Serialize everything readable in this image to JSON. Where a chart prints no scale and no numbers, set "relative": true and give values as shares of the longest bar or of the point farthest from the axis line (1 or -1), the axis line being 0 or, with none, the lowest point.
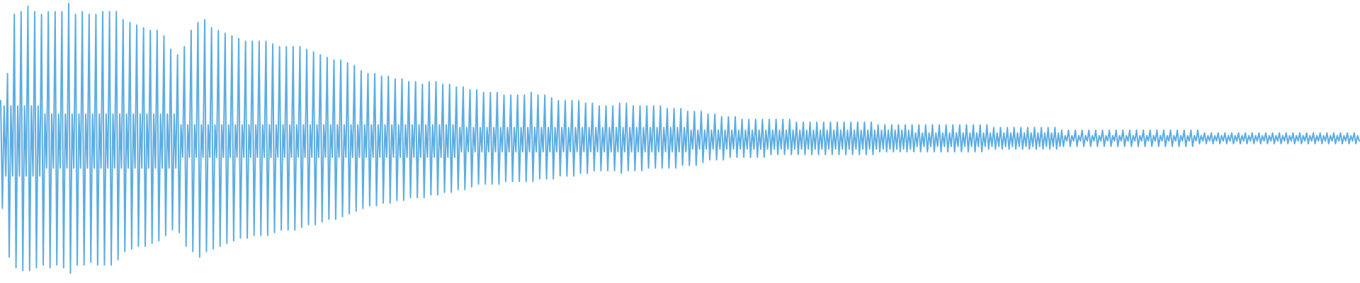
{
  "chart_data": {
    "type": "line",
    "relative": true,
    "color": "#5dade2",
    "categories": [
      null,
      null,
      null,
      null,
      null,
      null,
      null,
      null,
      null,
      null,
      null,
      null,
      null,
      null,
      null,
      null,
      null,
      null,
      null,
      null,
      null,
      null,
      null,
      null,
      null,
      null,
      null,
      null,
      null,
      null,
      null,
      null,
      null,
      null,
      null,
      null,
      null,
      null,
      null,
      null,
      null,
      null,
      null,
      null,
      null,
      null,
      null,
      null,
      null,
      null,
      null,
      null,
      null,
      null,
      null,
      null,
      null,
      null,
      null,
      null,
      null,
      null,
      null,
      null,
      null,
      null,
      null,
      null,
      null,
      null,
      null,
      null,
      null,
      null,
      null,
      null,
      null,
      null,
      null,
      null,
      null,
      null,
      null,
      null,
      null,
      null,
      null,
      null,
      null,
      null,
      null,
      null,
      null,
      null,
      null,
      null,
      null,
      null,
      null,
      null,
      null,
      null,
      null,
      null,
      null,
      null,
      null,
      null,
      null,
      null,
      null,
      null,
      null,
      null,
      null,
      null,
      null,
      null,
      null,
      null,
      null,
      null,
      null,
      null,
      null,
      null,
      null,
      null,
      null,
      null,
      null,
      null,
      null,
      null,
      null,
      null,
      null,
      null,
      null,
      null,
      null,
      null,
      null,
      null,
      null,
      null,
      null,
      null,
      null,
      null,
      null,
      null,
      null,
      null,
      null,
      null,
      null,
      null,
      null,
      null,
      null,
      null,
      null,
      null,
      null,
      null,
      null,
      null,
      null,
      null,
      null,
      null,
      null,
      null,
      null,
      null,
      null,
      null,
      null,
      null,
      null,
      null,
      null,
      null,
      null,
      null,
      null,
      null,
      null,
      null,
      null,
      null,
      null,
      null,
      null,
      null,
      null,
      null,
      null,
      null,
      null,
      null,
      null,
      null,
      null,
      null,
      null,
      null,
      null,
      null,
      null,
      null,
      null,
      null,
      null,
      null,
      null,
      null,
      null,
      null,
      null,
      null,
      null,
      null,
      null,
      null,
      null,
      null,
      null,
      null,
      null,
      null,
      null,
      null,
      null,
      null,
      null,
      null,
      null,
      null,
      null,
      null,
      null,
      null,
      null,
      null,
      null,
      null,
      null,
      null,
      null,
      null,
      null,
      null,
      null,
      null,
      null,
      null,
      null,
      null,
      null,
      null,
      null,
      null,
      null,
      null,
      null,
      null,
      null,
      null,
      null,
      null,
      null,
      null,
      null,
      null,
      null,
      null,
      null,
      null,
      null,
      null,
      null,
      null,
      null,
      null,
      null,
      null,
      null,
      null,
      null,
      null,
      null,
      null,
      null,
      null,
      null,
      null,
      null,
      null,
      null,
      null,
      null,
      null,
      null,
      null,
      null,
      null,
      null,
      null,
      null,
      null,
      null,
      null,
      null,
      null,
      null,
      null,
      null,
      null,
      null,
      null,
      null,
      null,
      null,
      null,
      null,
      null,
      null,
      null,
      null,
      null,
      null,
      null,
      null,
      null,
      null,
      null,
      null,
      null,
      null,
      null,
      null,
      null,
      null,
      null,
      null,
      null,
      null,
      null,
      null,
      null,
      null,
      null,
      null,
      null,
      null,
      null,
      null,
      null,
      null,
      null,
      null,
      null,
      null,
      null,
      null,
      null,
      null,
      null,
      null,
      null,
      null,
      null,
      null,
      null,
      null,
      null,
      null,
      null,
      null,
      null,
      null,
      null,
      null,
      null,
      null,
      null,
      null,
      null,
      null,
      null,
      null,
      null,
      null,
      null,
      null,
      null,
      null,
      null,
      null,
      null,
      null,
      null,
      null,
      null,
      null,
      null,
      null,
      null,
      null,
      null,
      null,
      null,
      null,
      null,
      null,
      null,
      null,
      null,
      null,
      null,
      null,
      null,
      null,
      null,
      null,
      null,
      null,
      null,
      null,
      null,
      null,
      null,
      null,
      null,
      null,
      null,
      null,
      null,
      null,
      null,
      null,
      null,
      null,
      null,
      null,
      null,
      null,
      null,
      null,
      null,
      null,
      null,
      null,
      null,
      null,
      null,
      null,
      null,
      null,
      null,
      null,
      null,
      null,
      null,
      null,
      null,
      null,
      null,
      null,
      null,
      null,
      null,
      null,
      null,
      null,
      null,
      null,
      null,
      null,
      null,
      null,
      null,
      null,
      null,
      null,
      null,
      null,
      null,
      null,
      null,
      null,
      null,
      null,
      null,
      null,
      null,
      null,
      null,
      null,
      null,
      null,
      null,
      null,
      null,
      null,
      null,
      null,
      null,
      null,
      null,
      null,
      null,
      null,
      null,
      null,
      null,
      null,
      null,
      null,
      null,
      null,
      null,
      null,
      null,
      null,
      null,
      null,
      null,
      null,
      null,
      null,
      null,
      null,
      null,
      null,
      null,
      null,
      null,
      null,
      null,
      null,
      null,
      null,
      null,
      null,
      null,
      null,
      null,
      null,
      null,
      null,
      null,
      null,
      null,
      null,
      null,
      null,
      null,
      null,
      null,
      null,
      null,
      null,
      null,
      null,
      null,
      null,
      null,
      null,
      null,
      null,
      null,
      null,
      null,
      null,
      null,
      null,
      null,
      null,
      null,
      null,
      null,
      null,
      null,
      null,
      null,
      null,
      null,
      null,
      null,
      null,
      null,
      null,
      null,
      null,
      null,
      null,
      null,
      null,
      null,
      null,
      null,
      null,
      null,
      null,
      null,
      null,
      null,
      null,
      null,
      null,
      null,
      null,
      null,
      null,
      null,
      null,
      null,
      null,
      null,
      null,
      null,
      null,
      null,
      null,
      null,
      null,
      null,
      null,
      null,
      null,
      null,
      null,
      null,
      null,
      null,
      null,
      null,
      null,
      null,
      null,
      null,
      null,
      null,
      null,
      null,
      null,
      null,
      null,
      null,
      null,
      null,
      null,
      null,
      null,
      null,
      null,
      null,
      null,
      null,
      null,
      null,
      null,
      null,
      null,
      null,
      null,
      null,
      null,
      null,
      null,
      null,
      null,
      null,
      null,
      null,
      null,
      null,
      null,
      null,
      null,
      null,
      null,
      null,
      null,
      null,
      null,
      null,
      null,
      null,
      null,
      null,
      null,
      null,
      null,
      null,
      null,
      null,
      null,
      null,
      null,
      null,
      null,
      null,
      null,
      null,
      null,
      null,
      null,
      null,
      null,
      null,
      null,
      null,
      null,
      null,
      null,
      null,
      null,
      null,
      null,
      null,
      null,
      null,
      null,
      null,
      null,
      null,
      null,
      null,
      null,
      null,
      null,
      null,
      null,
      null,
      null,
      null,
      null,
      null,
      null,
      null,
      null,
      null,
      null,
      null,
      null,
      null,
      null,
      null,
      null,
      null,
      null,
      null,
      null,
      null,
      null,
      null,
      null,
      null,
      null,
      null,
      null,
      null,
      null,
      null,
      null,
      null,
      null,
      null,
      null,
      null,
      null,
      null,
      null,
      null,
      null,
      null,
      null,
      null,
      null,
      null,
      null,
      null,
      null,
      null,
      null,
      null,
      null,
      null,
      null,
      null,
      null,
      null,
      null,
      null,
      null,
      null
    ],
    "values": [
      0.64,
      0.24,
      0.62,
      0.36,
      0.74,
      0.06,
      0.62,
      0.36,
      0.96,
      0.02,
      0.62,
      0.36,
      0.97,
      0.01,
      0.62,
      0.36,
      0.99,
      0.01,
      0.62,
      0.36,
      0.97,
      0.02,
      0.62,
      0.36,
      0.96,
      0.03,
      0.59,
      0.39,
      0.97,
      0.02,
      0.59,
      0.39,
      0.97,
      0.03,
      0.59,
      0.39,
      0.97,
      0.02,
      0.59,
      0.39,
      1.0,
      0.0,
      0.59,
      0.39,
      0.96,
      0.03,
      0.59,
      0.39,
      0.97,
      0.03,
      0.59,
      0.39,
      0.96,
      0.04,
      0.59,
      0.39,
      0.96,
      0.03,
      0.59,
      0.39,
      0.97,
      0.03,
      0.59,
      0.39,
      0.97,
      0.03,
      0.59,
      0.39,
      0.97,
      0.05,
      0.59,
      0.39,
      0.94,
      0.08,
      0.59,
      0.39,
      0.93,
      0.09,
      0.59,
      0.39,
      0.92,
      0.1,
      0.59,
      0.39,
      0.91,
      0.1,
      0.59,
      0.39,
      0.9,
      0.11,
      0.59,
      0.39,
      0.9,
      0.12,
      0.59,
      0.39,
      0.88,
      0.14,
      0.59,
      0.39,
      0.83,
      0.16,
      0.59,
      0.39,
      0.81,
      0.15,
      0.55,
      0.43,
      0.84,
      0.1,
      0.55,
      0.43,
      0.9,
      0.08,
      0.55,
      0.43,
      0.93,
      0.06,
      0.55,
      0.43,
      0.94,
      0.08,
      0.55,
      0.43,
      0.91,
      0.09,
      0.55,
      0.43,
      0.9,
      0.1,
      0.55,
      0.43,
      0.89,
      0.11,
      0.55,
      0.43,
      0.88,
      0.12,
      0.55,
      0.43,
      0.87,
      0.13,
      0.55,
      0.43,
      0.86,
      0.13,
      0.55,
      0.43,
      0.86,
      0.14,
      0.55,
      0.43,
      0.86,
      0.14,
      0.55,
      0.43,
      0.86,
      0.14,
      0.55,
      0.43,
      0.85,
      0.15,
      0.55,
      0.43,
      0.84,
      0.16,
      0.55,
      0.43,
      0.84,
      0.16,
      0.55,
      0.43,
      0.84,
      0.16,
      0.55,
      0.43,
      0.84,
      0.17,
      0.55,
      0.43,
      0.83,
      0.18,
      0.55,
      0.43,
      0.82,
      0.18,
      0.55,
      0.43,
      0.81,
      0.19,
      0.55,
      0.43,
      0.8,
      0.2,
      0.55,
      0.43,
      0.79,
      0.2,
      0.55,
      0.43,
      0.79,
      0.21,
      0.55,
      0.43,
      0.78,
      0.22,
      0.55,
      0.43,
      0.77,
      0.23,
      0.55,
      0.43,
      0.75,
      0.24,
      0.55,
      0.43,
      0.74,
      0.25,
      0.55,
      0.43,
      0.74,
      0.25,
      0.55,
      0.43,
      0.73,
      0.26,
      0.55,
      0.43,
      0.73,
      0.26,
      0.55,
      0.43,
      0.72,
      0.27,
      0.55,
      0.43,
      0.72,
      0.27,
      0.55,
      0.43,
      0.71,
      0.28,
      0.55,
      0.43,
      0.71,
      0.28,
      0.55,
      0.43,
      0.7,
      0.28,
      0.55,
      0.43,
      0.71,
      0.29,
      0.55,
      0.43,
      0.71,
      0.29,
      0.55,
      0.43,
      0.7,
      0.3,
      0.55,
      0.43,
      0.7,
      0.3,
      0.55,
      0.43,
      0.69,
      0.31,
      0.54,
      0.45,
      0.69,
      0.31,
      0.54,
      0.45,
      0.68,
      0.32,
      0.54,
      0.45,
      0.68,
      0.33,
      0.54,
      0.45,
      0.67,
      0.33,
      0.54,
      0.45,
      0.67,
      0.33,
      0.54,
      0.45,
      0.67,
      0.33,
      0.54,
      0.45,
      0.66,
      0.34,
      0.54,
      0.45,
      0.66,
      0.34,
      0.54,
      0.45,
      0.66,
      0.34,
      0.54,
      0.45,
      0.66,
      0.34,
      0.54,
      0.45,
      0.67,
      0.34,
      0.54,
      0.45,
      0.66,
      0.35,
      0.54,
      0.45,
      0.66,
      0.35,
      0.54,
      0.45,
      0.65,
      0.35,
      0.54,
      0.45,
      0.64,
      0.36,
      0.54,
      0.45,
      0.64,
      0.36,
      0.54,
      0.45,
      0.64,
      0.36,
      0.54,
      0.45,
      0.64,
      0.37,
      0.54,
      0.45,
      0.63,
      0.37,
      0.54,
      0.45,
      0.63,
      0.38,
      0.54,
      0.45,
      0.62,
      0.38,
      0.54,
      0.45,
      0.62,
      0.38,
      0.54,
      0.45,
      0.62,
      0.38,
      0.54,
      0.45,
      0.63,
      0.37,
      0.54,
      0.45,
      0.63,
      0.38,
      0.54,
      0.45,
      0.62,
      0.38,
      0.54,
      0.45,
      0.62,
      0.38,
      0.54,
      0.45,
      0.62,
      0.39,
      0.54,
      0.45,
      0.62,
      0.39,
      0.54,
      0.45,
      0.62,
      0.39,
      0.54,
      0.45,
      0.61,
      0.39,
      0.54,
      0.45,
      0.61,
      0.39,
      0.54,
      0.45,
      0.61,
      0.4,
      0.54,
      0.45,
      0.6,
      0.4,
      0.53,
      0.46,
      0.6,
      0.4,
      0.53,
      0.46,
      0.6,
      0.41,
      0.53,
      0.46,
      0.59,
      0.42,
      0.53,
      0.46,
      0.59,
      0.42,
      0.53,
      0.46,
      0.58,
      0.42,
      0.53,
      0.46,
      0.58,
      0.43,
      0.53,
      0.46,
      0.58,
      0.43,
      0.53,
      0.46,
      0.57,
      0.43,
      0.53,
      0.46,
      0.57,
      0.43,
      0.53,
      0.46,
      0.57,
      0.43,
      0.53,
      0.46,
      0.57,
      0.43,
      0.53,
      0.46,
      0.57,
      0.44,
      0.53,
      0.46,
      0.57,
      0.44,
      0.53,
      0.46,
      0.57,
      0.44,
      0.53,
      0.46,
      0.57,
      0.44,
      0.53,
      0.46,
      0.56,
      0.44,
      0.53,
      0.46,
      0.56,
      0.44,
      0.53,
      0.46,
      0.56,
      0.44,
      0.53,
      0.46,
      0.56,
      0.44,
      0.53,
      0.46,
      0.56,
      0.44,
      0.53,
      0.46,
      0.56,
      0.44,
      0.53,
      0.46,
      0.56,
      0.44,
      0.53,
      0.46,
      0.56,
      0.44,
      0.53,
      0.46,
      0.56,
      0.44,
      0.53,
      0.46,
      0.56,
      0.44,
      0.53,
      0.46,
      0.56,
      0.44,
      0.53,
      0.46,
      0.56,
      0.44,
      0.53,
      0.46,
      0.55,
      0.45,
      0.53,
      0.46,
      0.55,
      0.45,
      0.53,
      0.46,
      0.55,
      0.45,
      0.53,
      0.46,
      0.55,
      0.45,
      0.53,
      0.46,
      0.55,
      0.45,
      0.53,
      0.46,
      0.55,
      0.45,
      0.52,
      0.47,
      0.55,
      0.45,
      0.52,
      0.47,
      0.55,
      0.45,
      0.52,
      0.47,
      0.55,
      0.45,
      0.52,
      0.47,
      0.55,
      0.45,
      0.52,
      0.47,
      0.55,
      0.45,
      0.52,
      0.47,
      0.55,
      0.45,
      0.52,
      0.47,
      0.55,
      0.45,
      0.52,
      0.47,
      0.55,
      0.45,
      0.52,
      0.47,
      0.55,
      0.45,
      0.52,
      0.47,
      0.55,
      0.45,
      0.52,
      0.47,
      0.55,
      0.46,
      0.52,
      0.47,
      0.54,
      0.46,
      0.52,
      0.47,
      0.54,
      0.46,
      0.52,
      0.47,
      0.54,
      0.46,
      0.52,
      0.47,
      0.54,
      0.46,
      0.52,
      0.47,
      0.54,
      0.46,
      0.52,
      0.47,
      0.54,
      0.46,
      0.52,
      0.47,
      0.54,
      0.46,
      0.52,
      0.47,
      0.54,
      0.46,
      0.52,
      0.47,
      0.54,
      0.46,
      0.52,
      0.47,
      0.54,
      0.46,
      0.52,
      0.47,
      0.53,
      0.47,
      0.51,
      0.49,
      0.53,
      0.47,
      0.51,
      0.49,
      0.53,
      0.47,
      0.51,
      0.49,
      0.53,
      0.47,
      0.51,
      0.49,
      0.53,
      0.47,
      0.51,
      0.49,
      0.53,
      0.47,
      0.51,
      0.49,
      0.53,
      0.47,
      0.51,
      0.49,
      0.53,
      0.47,
      0.51,
      0.49,
      0.53,
      0.47,
      0.51,
      0.49,
      0.53,
      0.47,
      0.51,
      0.49,
      0.53,
      0.47,
      0.51,
      0.49,
      0.53,
      0.47,
      0.51,
      0.49,
      0.53,
      0.47,
      0.51,
      0.49,
      0.53,
      0.47,
      0.51,
      0.49,
      0.53,
      0.47,
      0.51,
      0.49,
      0.53,
      0.47,
      0.51,
      0.49,
      0.53,
      0.47,
      0.51,
      0.49,
      0.53,
      0.47,
      0.51,
      0.49,
      0.53,
      0.47,
      0.51,
      0.49,
      0.53,
      0.47,
      0.51,
      0.49,
      0.53,
      0.48,
      0.51,
      0.49,
      0.52,
      0.48,
      0.51,
      0.49,
      0.52,
      0.48,
      0.51,
      0.49,
      0.52,
      0.48,
      0.51,
      0.49,
      0.52,
      0.48,
      0.51,
      0.49,
      0.52,
      0.48,
      0.51,
      0.49,
      0.52,
      0.48,
      0.51,
      0.49,
      0.52,
      0.48,
      0.51,
      0.49,
      0.52,
      0.48,
      0.51,
      0.49,
      0.52,
      0.48,
      0.51,
      0.49,
      0.52,
      0.48,
      0.51,
      0.49,
      0.52,
      0.48,
      0.51,
      0.49,
      0.52,
      0.48,
      0.51,
      0.49,
      0.52,
      0.48,
      0.51,
      0.49,
      0.52,
      0.48,
      0.51,
      0.49,
      0.52,
      0.48,
      0.51,
      0.49,
      0.52,
      0.48,
      0.51,
      0.49,
      0.52,
      0.48,
      0.51,
      0.49,
      0.52,
      0.48,
      0.51,
      0.49,
      0.52,
      0.48,
      0.51,
      0.49,
      0.52,
      0.48,
      0.51,
      0.49,
      0.52,
      0.48,
      0.51,
      0.49,
      0.52,
      0.48,
      0.51,
      0.49,
      0.52,
      0.48,
      0.51,
      0.49
    ]
  }
}
